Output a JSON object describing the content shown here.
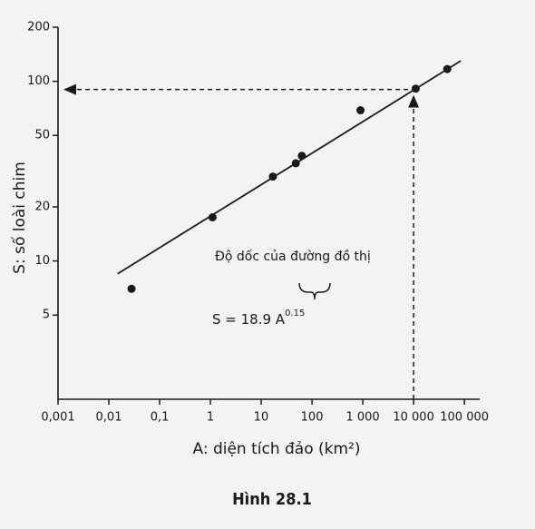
{
  "chart_data": {
    "type": "scatter",
    "caption": "Hình 28.1",
    "x_label": "A: diện tích đảo (km²)",
    "y_label": "S: số loài chim",
    "log_x": true,
    "log_y": true,
    "x": [
      0.028,
      1.1,
      17,
      48,
      63,
      900,
      11000,
      46000
    ],
    "values": [
      7,
      17.5,
      29.5,
      35,
      38.5,
      69,
      91,
      117
    ],
    "color": "#1a1a1a",
    "fit_line": {
      "x": [
        0.015,
        85000
      ],
      "values": [
        8.5,
        130
      ]
    },
    "reference": {
      "x": 10000,
      "y": 90
    },
    "annotation": "Độ dốc của đường đồ thị",
    "equation": {
      "text": "S = 18.9 A",
      "superscript": "0.15"
    },
    "xlim": [
      0.001,
      200000
    ],
    "ylim": [
      1.7,
      200
    ],
    "xticks": [
      {
        "value": 0.001,
        "label": "0,001"
      },
      {
        "value": 0.01,
        "label": "0,01"
      },
      {
        "value": 0.1,
        "label": "0,1"
      },
      1,
      10,
      100,
      {
        "value": 1000,
        "label": "1 000"
      },
      {
        "value": 10000,
        "label": "10 000"
      },
      {
        "value": 100000,
        "label": "100 000"
      }
    ],
    "yticks": [
      5,
      10,
      20,
      50,
      100,
      200
    ]
  }
}
